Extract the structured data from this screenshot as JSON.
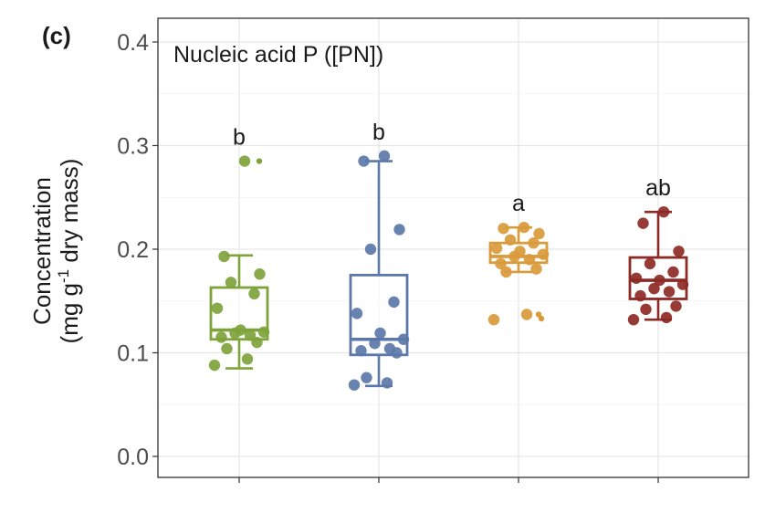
{
  "chart_data": {
    "type": "box",
    "panel_label": "(c)",
    "title": "Nucleic acid P ([PN])",
    "ylabel_line1": "Concentration",
    "ylabel_line2_prefix": "(mg g",
    "ylabel_line2_sup": "-1",
    "ylabel_line2_suffix": " dry mass)",
    "ylim": [
      0,
      0.42
    ],
    "yticks": [
      0.0,
      0.1,
      0.2,
      0.3,
      0.4
    ],
    "ytick_labels": [
      "0.0",
      "0.1",
      "0.2",
      "0.3",
      "0.4"
    ],
    "grid": true,
    "groups": [
      {
        "color": "#7ea33b",
        "sig_label": "b",
        "box": {
          "min": 0.085,
          "q1": 0.113,
          "median": 0.122,
          "q3": 0.163,
          "max": 0.194
        },
        "outliers": [
          0.285
        ],
        "points": [
          0.285,
          0.193,
          0.176,
          0.168,
          0.157,
          0.143,
          0.122,
          0.12,
          0.119,
          0.117,
          0.115,
          0.11,
          0.104,
          0.094,
          0.088
        ]
      },
      {
        "color": "#5b78a8",
        "sig_label": "b",
        "box": {
          "min": 0.068,
          "q1": 0.098,
          "median": 0.113,
          "q3": 0.175,
          "max": 0.285
        },
        "outliers": [],
        "points": [
          0.29,
          0.285,
          0.219,
          0.2,
          0.149,
          0.138,
          0.119,
          0.113,
          0.109,
          0.104,
          0.102,
          0.1,
          0.076,
          0.071,
          0.069
        ]
      },
      {
        "color": "#d99a3a",
        "sig_label": "a",
        "box": {
          "min": 0.178,
          "q1": 0.187,
          "median": 0.193,
          "q3": 0.206,
          "max": 0.221
        },
        "outliers": [
          0.137,
          0.133
        ],
        "points": [
          0.221,
          0.22,
          0.215,
          0.209,
          0.206,
          0.201,
          0.198,
          0.195,
          0.193,
          0.19,
          0.186,
          0.181,
          0.178,
          0.137,
          0.132
        ]
      },
      {
        "color": "#8e2a26",
        "sig_label": "ab",
        "box": {
          "min": 0.132,
          "q1": 0.152,
          "median": 0.17,
          "q3": 0.192,
          "max": 0.236
        },
        "outliers": [],
        "points": [
          0.236,
          0.225,
          0.198,
          0.186,
          0.178,
          0.172,
          0.17,
          0.166,
          0.162,
          0.159,
          0.155,
          0.145,
          0.142,
          0.134,
          0.132
        ]
      }
    ]
  }
}
